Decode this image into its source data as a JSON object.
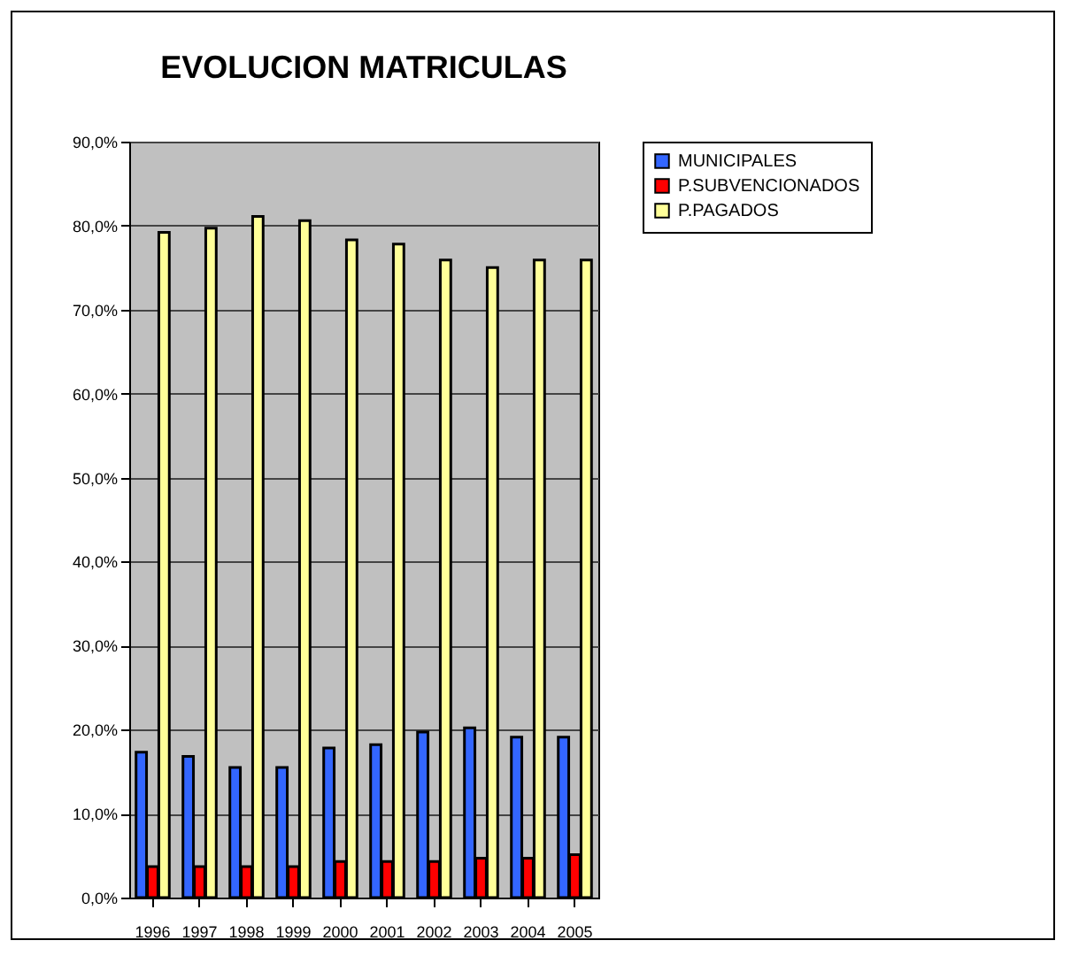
{
  "chart_data": {
    "type": "bar",
    "title": "EVOLUCION MATRICULAS",
    "categories": [
      "1996",
      "1997",
      "1998",
      "1999",
      "2000",
      "2001",
      "2002",
      "2003",
      "2004",
      "2005"
    ],
    "series": [
      {
        "name": "MUNICIPALES",
        "color": "#3366ff",
        "values": [
          17.3,
          16.8,
          15.5,
          15.5,
          17.8,
          18.2,
          19.7,
          20.2,
          19.1,
          19.1
        ]
      },
      {
        "name": "P.SUBVENCIONADOS",
        "color": "#ff0000",
        "values": [
          3.7,
          3.7,
          3.7,
          3.7,
          4.3,
          4.3,
          4.3,
          4.7,
          4.7,
          5.1
        ]
      },
      {
        "name": "P.PAGADOS",
        "color": "#ffff99",
        "values": [
          79.2,
          79.7,
          81.1,
          80.6,
          78.3,
          77.8,
          75.9,
          75.0,
          75.9,
          75.9
        ]
      }
    ],
    "ylim": [
      0,
      90
    ],
    "yticks": [
      {
        "value": 0,
        "label": "0,0%"
      },
      {
        "value": 10,
        "label": "10,0%"
      },
      {
        "value": 20,
        "label": "20,0%"
      },
      {
        "value": 30,
        "label": "30,0%"
      },
      {
        "value": 40,
        "label": "40,0%"
      },
      {
        "value": 50,
        "label": "50,0%"
      },
      {
        "value": 60,
        "label": "60,0%"
      },
      {
        "value": 70,
        "label": "70,0%"
      },
      {
        "value": 80,
        "label": "80,0%"
      },
      {
        "value": 90,
        "label": "90,0%"
      }
    ],
    "grid": "y",
    "legend": "right"
  }
}
